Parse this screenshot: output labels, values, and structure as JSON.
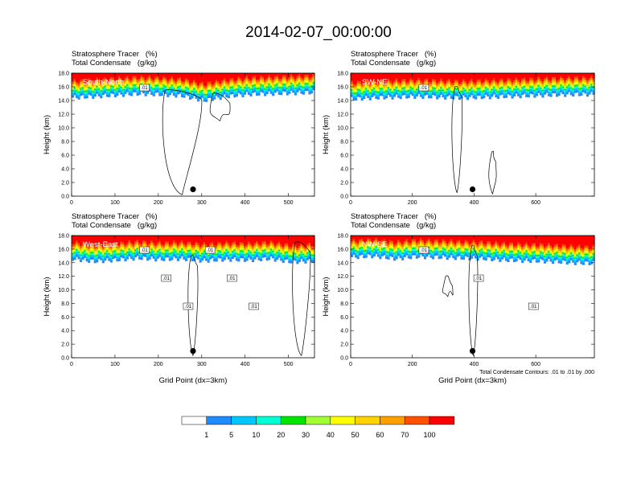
{
  "title": "2014-02-07_00:00:00",
  "header_line1": "Stratosphere Tracer   (%)",
  "header_line2": "Total Condensate   (g/kg)",
  "ylabel": "Height (km)",
  "xlabel": "Grid Point (dx=3km)",
  "contour_note": "Total Condensate Contours: .01 to .01 by .000",
  "colorbar": {
    "colors": [
      "#ffffff",
      "#1e8cff",
      "#00c8ff",
      "#00ffd2",
      "#00e600",
      "#a0ff32",
      "#ffff00",
      "#ffd200",
      "#ffa000",
      "#ff5000",
      "#ff0000"
    ],
    "labels": [
      "1",
      "5",
      "10",
      "20",
      "30",
      "40",
      "50",
      "60",
      "70",
      "100"
    ]
  },
  "chart_data": [
    {
      "type": "heatmap",
      "panel": "South-North",
      "title": "South-North",
      "xlabel": "",
      "ylabel": "Height (km)",
      "xlim": [
        0,
        560
      ],
      "ylim": [
        0,
        18
      ],
      "xticks": [
        0,
        100,
        200,
        300,
        400,
        500
      ],
      "yticks": [
        0.0,
        2.0,
        4.0,
        6.0,
        8.0,
        10.0,
        12.0,
        14.0,
        16.0,
        18.0
      ],
      "tropopause_km": [
        15.0,
        15.2,
        15.4,
        15.6,
        15.5,
        15.3,
        14.6,
        15.2,
        15.5,
        15.6,
        15.7,
        15.8
      ],
      "cloud_features": [
        {
          "x": [
            210,
            300
          ],
          "top_km": 15.5,
          "base_km": 0.2
        },
        {
          "x": [
            320,
            365
          ],
          "top_km": 15.0,
          "base_km": 11.0
        }
      ],
      "contour_labels": [
        ".01"
      ],
      "marker": {
        "x": 280,
        "y_km": 1.0
      }
    },
    {
      "type": "heatmap",
      "panel": "SW-NE",
      "title": "SW-NE",
      "xlabel": "",
      "ylabel": "Height (km)",
      "xlim": [
        0,
        790
      ],
      "ylim": [
        0,
        18
      ],
      "xticks": [
        0,
        200,
        400,
        600
      ],
      "yticks": [
        0.0,
        2.0,
        4.0,
        6.0,
        8.0,
        10.0,
        12.0,
        14.0,
        16.0,
        18.0
      ],
      "tropopause_km": [
        14.8,
        15.0,
        15.1,
        15.2,
        15.1,
        15.0,
        15.1,
        15.2,
        15.3,
        15.4,
        15.5,
        15.5
      ],
      "cloud_features": [
        {
          "x": [
            330,
            360
          ],
          "top_km": 16.0,
          "base_km": 0.5
        },
        {
          "x": [
            450,
            470
          ],
          "top_km": 6.5,
          "base_km": 0.3
        }
      ],
      "contour_labels": [
        ".01"
      ],
      "marker": {
        "x": 395,
        "y_km": 1.0
      }
    },
    {
      "type": "heatmap",
      "panel": "West-East",
      "title": "West-East",
      "xlabel": "Grid Point (dx=3km)",
      "ylabel": "Height (km)",
      "xlim": [
        0,
        560
      ],
      "ylim": [
        0,
        18
      ],
      "xticks": [
        0,
        100,
        200,
        300,
        400,
        500
      ],
      "yticks": [
        0.0,
        2.0,
        4.0,
        6.0,
        8.0,
        10.0,
        12.0,
        14.0,
        16.0,
        18.0
      ],
      "tropopause_km": [
        15.2,
        14.8,
        15.0,
        15.3,
        15.1,
        15.2,
        14.9,
        15.1,
        15.0,
        15.2,
        14.7,
        14.9
      ],
      "cloud_features": [
        {
          "x": [
            270,
            290
          ],
          "top_km": 15.0,
          "base_km": 0.3
        },
        {
          "x": [
            510,
            550
          ],
          "top_km": 17.0,
          "base_km": 0.3
        }
      ],
      "contour_labels": [
        ".01",
        ".01",
        ".01",
        ".01",
        ".01",
        ".01"
      ],
      "marker": {
        "x": 280,
        "y_km": 1.0
      }
    },
    {
      "type": "heatmap",
      "panel": "NW-SE",
      "title": "NW-SE",
      "xlabel": "Grid Point (dx=3km)",
      "ylabel": "Height (km)",
      "xlim": [
        0,
        790
      ],
      "ylim": [
        0,
        18
      ],
      "xticks": [
        0,
        200,
        400,
        600
      ],
      "yticks": [
        0.0,
        2.0,
        4.0,
        6.0,
        8.0,
        10.0,
        12.0,
        14.0,
        16.0,
        18.0
      ],
      "tropopause_km": [
        15.4,
        15.6,
        15.2,
        15.5,
        15.4,
        15.3,
        15.2,
        15.0,
        14.9,
        14.8,
        14.6,
        14.5
      ],
      "cloud_features": [
        {
          "x": [
            385,
            410
          ],
          "top_km": 16.5,
          "base_km": 0.3
        },
        {
          "x": [
            300,
            330
          ],
          "top_km": 12.0,
          "base_km": 9.0
        }
      ],
      "contour_labels": [
        ".01",
        ".01",
        ".01"
      ],
      "marker": {
        "x": 395,
        "y_km": 1.0
      }
    }
  ]
}
